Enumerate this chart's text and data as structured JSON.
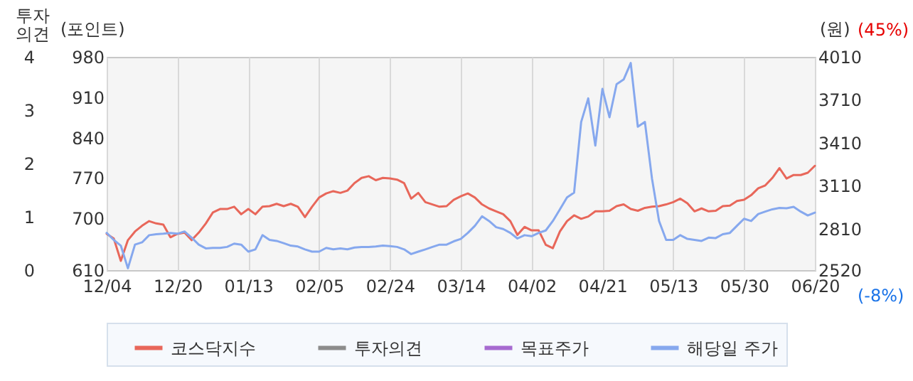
{
  "chart_data": {
    "type": "line",
    "categories": [
      "12/04",
      null,
      null,
      null,
      null,
      null,
      null,
      null,
      null,
      null,
      "12/20",
      null,
      null,
      null,
      null,
      null,
      null,
      null,
      null,
      null,
      "01/13",
      null,
      null,
      null,
      null,
      null,
      null,
      null,
      null,
      null,
      "02/05",
      null,
      null,
      null,
      null,
      null,
      null,
      null,
      null,
      null,
      "02/24",
      null,
      null,
      null,
      null,
      null,
      null,
      null,
      null,
      null,
      "03/14",
      null,
      null,
      null,
      null,
      null,
      null,
      null,
      null,
      null,
      "04/02",
      null,
      null,
      null,
      null,
      null,
      null,
      null,
      null,
      null,
      "04/21",
      null,
      null,
      null,
      null,
      null,
      null,
      null,
      null,
      null,
      "05/13",
      null,
      null,
      null,
      null,
      null,
      null,
      null,
      null,
      null,
      "05/30",
      null,
      null,
      null,
      null,
      null,
      null,
      null,
      null,
      null,
      "06/20"
    ],
    "series": [
      {
        "name": "코스닥지수",
        "color": "#e8675a",
        "values": [
          673,
          665,
          626,
          662,
          677,
          687,
          695,
          691,
          689,
          667,
          673,
          675,
          662,
          675,
          691,
          710,
          716,
          716,
          720,
          707,
          716,
          707,
          720,
          721,
          725,
          721,
          725,
          720,
          702,
          720,
          736,
          743,
          747,
          744,
          748,
          761,
          770,
          773,
          766,
          770,
          769,
          767,
          761,
          734,
          744,
          728,
          724,
          720,
          721,
          732,
          738,
          743,
          736,
          724,
          717,
          712,
          707,
          695,
          671,
          685,
          679,
          679,
          654,
          648,
          677,
          695,
          705,
          699,
          703,
          712,
          712,
          713,
          721,
          724,
          716,
          713,
          718,
          720,
          721,
          724,
          728,
          734,
          726,
          712,
          717,
          712,
          713,
          721,
          722,
          730,
          732,
          740,
          752,
          757,
          770,
          787,
          769,
          775,
          775,
          779,
          791
        ]
      },
      {
        "name": "투자의견",
        "color": "#8c8c8c",
        "axis": "y3",
        "values": [
          null,
          null,
          null,
          null,
          null,
          null,
          null,
          null,
          null,
          null,
          null,
          null,
          null,
          null,
          null,
          null,
          null,
          null,
          null,
          null,
          null,
          null,
          null,
          null,
          null,
          null,
          null,
          null,
          null,
          null,
          null,
          null,
          null,
          null,
          null,
          null,
          null,
          null,
          null,
          null,
          null,
          null,
          null,
          null,
          null,
          null,
          null,
          null,
          null,
          null,
          null,
          null,
          null,
          null,
          null,
          null,
          null,
          null,
          null,
          null,
          null,
          null,
          null,
          null,
          null,
          null,
          null,
          null,
          null,
          null,
          null,
          null,
          null,
          null,
          null,
          null,
          null,
          null,
          null,
          null,
          null,
          null,
          null,
          null,
          null,
          null,
          null,
          null,
          null,
          null,
          null,
          null,
          null,
          null,
          null,
          null,
          null,
          null,
          null,
          null,
          null
        ]
      },
      {
        "name": "목표주가",
        "color": "#a66bd0",
        "axis": "y2",
        "values": [
          null,
          null,
          null,
          null,
          null,
          null,
          null,
          null,
          null,
          null,
          null,
          null,
          null,
          null,
          null,
          null,
          null,
          null,
          null,
          null,
          null,
          null,
          null,
          null,
          null,
          null,
          null,
          null,
          null,
          null,
          null,
          null,
          null,
          null,
          null,
          null,
          null,
          null,
          null,
          null,
          null,
          null,
          null,
          null,
          null,
          null,
          null,
          null,
          null,
          null,
          null,
          null,
          null,
          null,
          null,
          null,
          null,
          null,
          null,
          null,
          null,
          null,
          null,
          null,
          null,
          null,
          null,
          null,
          null,
          null,
          null,
          null,
          null,
          null,
          null,
          null,
          null,
          null,
          null,
          null,
          null,
          null,
          null,
          null,
          null,
          null,
          null,
          null,
          null,
          null,
          null,
          null,
          null,
          null,
          null,
          null,
          null,
          null,
          null,
          null,
          null
        ]
      },
      {
        "name": "해당일 주가",
        "color": "#86a8ee",
        "axis": "y2",
        "values": [
          2780,
          2731,
          2691,
          2533,
          2698,
          2714,
          2764,
          2771,
          2774,
          2780,
          2774,
          2790,
          2747,
          2698,
          2672,
          2675,
          2675,
          2682,
          2705,
          2698,
          2649,
          2665,
          2764,
          2731,
          2724,
          2708,
          2691,
          2685,
          2665,
          2649,
          2649,
          2675,
          2665,
          2672,
          2665,
          2678,
          2682,
          2682,
          2685,
          2691,
          2688,
          2682,
          2665,
          2632,
          2649,
          2665,
          2682,
          2698,
          2698,
          2721,
          2738,
          2780,
          2830,
          2896,
          2863,
          2820,
          2807,
          2780,
          2741,
          2764,
          2757,
          2780,
          2797,
          2863,
          2945,
          3028,
          3061,
          3555,
          3720,
          3390,
          3786,
          3588,
          3819,
          3852,
          3967,
          3522,
          3555,
          3160,
          2863,
          2731,
          2731,
          2764,
          2738,
          2731,
          2724,
          2747,
          2744,
          2771,
          2780,
          2830,
          2879,
          2863,
          2912,
          2929,
          2945,
          2955,
          2952,
          2962,
          2929,
          2902,
          2922
        ]
      }
    ],
    "ylabel": "(포인트)",
    "ylim": [
      610,
      980
    ],
    "yticks": [
      610,
      700,
      770,
      840,
      910,
      980
    ],
    "y2label": "(원)",
    "y2lim": [
      2520,
      4010
    ],
    "y2ticks": [
      2520,
      2810,
      3110,
      3410,
      3710,
      4010
    ],
    "y3label": "투자의견",
    "y3lim": [
      0,
      4
    ],
    "y3ticks": [
      0,
      1,
      2,
      3,
      4
    ],
    "annotations": [
      "(45%)",
      "(-8%)"
    ],
    "grid": "x",
    "legend": "bottom",
    "marker": "none",
    "line_style": "solid"
  }
}
